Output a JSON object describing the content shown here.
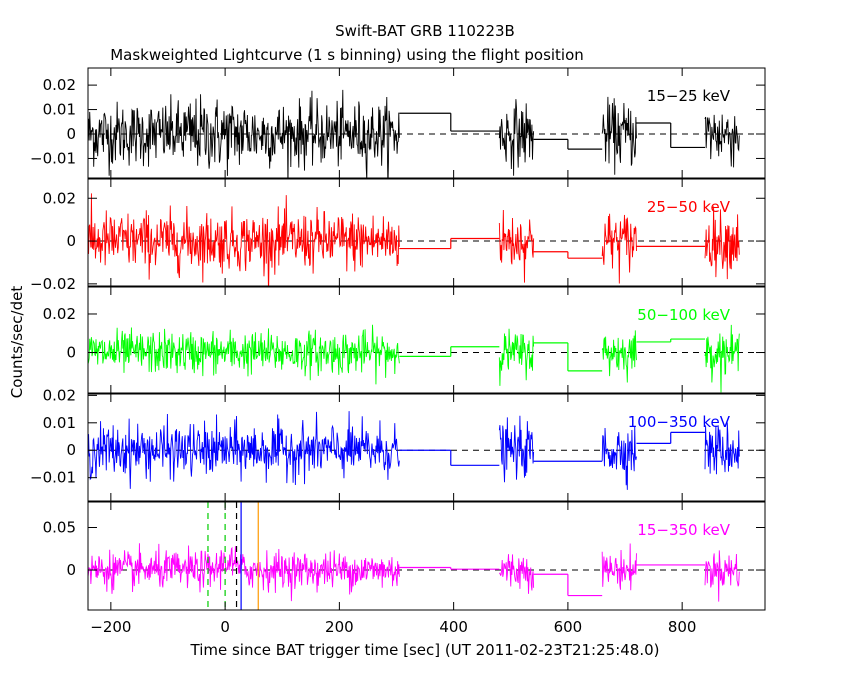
{
  "chart_data": {
    "type": "line",
    "title": "Swift-BAT GRB 110223B",
    "subtitle": "Maskweighted Lightcurve (1 s binning) using the flight position",
    "xlabel": "Time since BAT trigger time [sec] (UT 2011-02-23T21:25:48.0)",
    "ylabel": "Counts/sec/det",
    "xlim": [
      -240,
      945
    ],
    "xticks": [
      -200,
      0,
      200,
      400,
      600,
      800
    ],
    "xtick_labels": [
      "−200",
      "0",
      "200",
      "400",
      "600",
      "800"
    ],
    "panels": [
      {
        "name": "15−25 keV",
        "color": "#000000",
        "ylim": [
          -0.018,
          0.027
        ],
        "yticks": [
          0.02,
          0.01,
          0,
          -0.01
        ],
        "ytick_labels": [
          "0.02",
          "0.01",
          "0",
          "−0.01"
        ],
        "noise_sigma": 0.0065,
        "dense_segments": [
          [
            -240,
            305
          ],
          [
            480,
            540
          ],
          [
            660,
            720
          ],
          [
            840,
            900
          ]
        ],
        "steps": [
          [
            305,
            395,
            0.0085
          ],
          [
            395,
            480,
            0.0012
          ],
          [
            540,
            600,
            -0.0022
          ],
          [
            600,
            660,
            -0.0062
          ],
          [
            720,
            780,
            0.0045
          ],
          [
            780,
            840,
            -0.0055
          ]
        ]
      },
      {
        "name": "25−50 keV",
        "color": "#ff0000",
        "ylim": [
          -0.021,
          0.029
        ],
        "yticks": [
          0.02,
          0,
          -0.02
        ],
        "ytick_labels": [
          "0.02",
          "0",
          "−0.02"
        ],
        "noise_sigma": 0.0068,
        "dense_segments": [
          [
            -240,
            305
          ],
          [
            480,
            540
          ],
          [
            660,
            720
          ],
          [
            840,
            900
          ]
        ],
        "steps": [
          [
            305,
            395,
            -0.0035
          ],
          [
            395,
            480,
            0.0012
          ],
          [
            540,
            600,
            -0.005
          ],
          [
            600,
            660,
            -0.008
          ],
          [
            720,
            780,
            -0.0025
          ],
          [
            780,
            840,
            -0.0025
          ]
        ]
      },
      {
        "name": "50−100 keV",
        "color": "#00ff00",
        "ylim": [
          -0.021,
          0.034
        ],
        "yticks": [
          0.02,
          0
        ],
        "ytick_labels": [
          "0.02",
          "0"
        ],
        "noise_sigma": 0.0055,
        "dense_segments": [
          [
            -240,
            305
          ],
          [
            480,
            540
          ],
          [
            660,
            720
          ],
          [
            840,
            900
          ]
        ],
        "steps": [
          [
            305,
            395,
            -0.002
          ],
          [
            395,
            480,
            0.003
          ],
          [
            540,
            600,
            0.005
          ],
          [
            600,
            660,
            -0.0095
          ],
          [
            720,
            780,
            0.0055
          ],
          [
            780,
            840,
            0.007
          ]
        ]
      },
      {
        "name": "100−350 keV",
        "color": "#0000ff",
        "ylim": [
          -0.0185,
          0.0205
        ],
        "yticks": [
          0.02,
          0.01,
          0,
          -0.01
        ],
        "ytick_labels": [
          "0.02",
          "0.01",
          "0",
          "−0.01"
        ],
        "noise_sigma": 0.0048,
        "dense_segments": [
          [
            -240,
            305
          ],
          [
            480,
            540
          ],
          [
            660,
            720
          ],
          [
            840,
            900
          ]
        ],
        "steps": [
          [
            305,
            395,
            0.0
          ],
          [
            395,
            480,
            -0.0055
          ],
          [
            540,
            600,
            -0.004
          ],
          [
            600,
            660,
            -0.004
          ],
          [
            720,
            780,
            0.0025
          ],
          [
            780,
            840,
            0.0065
          ]
        ]
      },
      {
        "name": "15−350 keV",
        "color": "#ff00ff",
        "ylim": [
          -0.047,
          0.08
        ],
        "yticks": [
          0.05,
          0
        ],
        "ytick_labels": [
          "0.05",
          "0"
        ],
        "noise_sigma": 0.011,
        "dense_segments": [
          [
            -240,
            305
          ],
          [
            480,
            540
          ],
          [
            660,
            720
          ],
          [
            840,
            900
          ]
        ],
        "steps": [
          [
            305,
            395,
            0.003
          ],
          [
            395,
            480,
            0.001
          ],
          [
            540,
            600,
            -0.005
          ],
          [
            600,
            660,
            -0.03
          ],
          [
            720,
            780,
            0.006
          ],
          [
            780,
            840,
            0.006
          ]
        ],
        "markers": [
          {
            "x": -30,
            "color": "#00cc00",
            "style": "dashed"
          },
          {
            "x": 0,
            "color": "#00cc00",
            "style": "dashed"
          },
          {
            "x": 20,
            "color": "#000000",
            "style": "dashed"
          },
          {
            "x": 28,
            "color": "#0000ff",
            "style": "solid"
          },
          {
            "x": 58,
            "color": "#ff9900",
            "style": "solid"
          }
        ]
      }
    ],
    "grid": false
  }
}
